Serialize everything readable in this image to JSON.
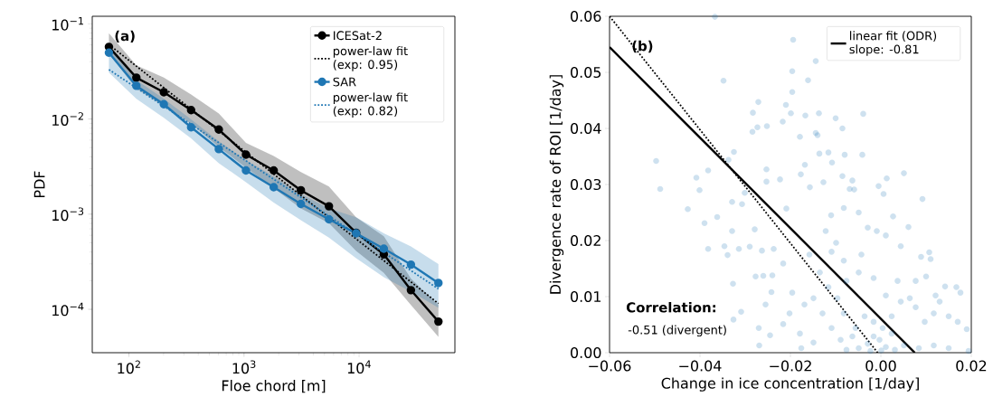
{
  "chart_data": [
    {
      "type": "line",
      "xlabel": "Floe chord [m]",
      "ylabel": "PDF",
      "log": "xy",
      "legend": "top right",
      "grid": false,
      "annotations": [
        "(a)"
      ],
      "xlim": [
        48,
        68000
      ],
      "ylim": [
        3.5e-05,
        0.12
      ],
      "xticks": [
        {
          "value": 100,
          "label": "10$^{2}$"
        },
        {
          "value": 1000,
          "label": "10$^{3}$"
        },
        {
          "value": 10000,
          "label": "10$^{4}$"
        }
      ],
      "yticks": [
        {
          "value": 0.0001,
          "label": "10$^{−4}$"
        },
        {
          "value": 0.001,
          "label": "10$^{−3}$"
        },
        {
          "value": 0.01,
          "label": "10$^{−2}$"
        },
        {
          "value": 0.1,
          "label": "10$^{−1}$"
        }
      ],
      "x": [
        67,
        116,
        201,
        347,
        604,
        1040,
        1812,
        3120,
        5470,
        9420,
        16400,
        28200,
        48900
      ],
      "series": [
        {
          "name": "ICESat-2",
          "color": "#000000",
          "marker": "circle",
          "line_style": "solid",
          "values": [
            0.0572,
            0.0272,
            0.0191,
            0.0124,
            0.00774,
            0.00422,
            0.00288,
            0.00178,
            0.00121,
            0.000638,
            0.000378,
            0.000159,
            7.43e-05
          ],
          "upper": [
            0.0798,
            0.0366,
            0.0272,
            0.0181,
            0.0114,
            0.00562,
            0.00409,
            0.00277,
            0.00195,
            0.000927,
            0.000586,
            0.00021,
            0.000111
          ],
          "lower": [
            0.0487,
            0.0208,
            0.0136,
            0.00891,
            0.00506,
            0.00308,
            0.00188,
            0.00115,
            0.000805,
            0.000411,
            0.000242,
            0.000111,
            5.12e-05
          ]
        },
        {
          "name": "power-law fit (exp: 0.95)",
          "color": "#000000",
          "marker": "none",
          "line_style": "dotted",
          "x": [
            67,
            48900
          ],
          "values": [
            0.0605,
            0.000115
          ]
        },
        {
          "name": "SAR",
          "color": "#1f77b4",
          "marker": "circle",
          "line_style": "solid",
          "values": [
            0.0497,
            0.0223,
            0.0143,
            0.00818,
            0.00482,
            0.00288,
            0.00192,
            0.00128,
            0.000883,
            0.000629,
            0.000433,
            0.000295,
            0.000189
          ],
          "upper": [
            0.056,
            0.0257,
            0.0163,
            0.00991,
            0.00583,
            0.00368,
            0.0025,
            0.00163,
            0.00115,
            0.000927,
            0.000629,
            0.000457,
            0.000299
          ],
          "lower": [
            0.0307,
            0.0163,
            0.0103,
            0.00625,
            0.00343,
            0.00217,
            0.00132,
            0.000865,
            0.000566,
            0.000345,
            0.000218,
            0.000153,
            0.000104
          ]
        },
        {
          "name": "power-law fit (exp: 0.82)",
          "color": "#1f77b4",
          "marker": "none",
          "line_style": "dotted",
          "x": [
            67,
            48900
          ],
          "values": [
            0.033,
            0.000164
          ]
        }
      ]
    },
    {
      "type": "scatter",
      "xlabel": "Change in ice concentration [1/day]",
      "ylabel": "Divergence rate of ROI [1/day]",
      "legend": "top right",
      "grid": false,
      "annotations": [
        "(b)",
        "Correlation:",
        "-0.51 (divergent)"
      ],
      "xlim": [
        -0.06,
        0.02
      ],
      "ylim": [
        0,
        0.06
      ],
      "xticks": [
        {
          "value": -0.06,
          "label": "−0.06"
        },
        {
          "value": -0.04,
          "label": "−0.04"
        },
        {
          "value": -0.02,
          "label": "−0.02"
        },
        {
          "value": 0,
          "label": "0.00"
        },
        {
          "value": 0.02,
          "label": "0.02"
        }
      ],
      "yticks": [
        {
          "value": 0,
          "label": "0.00"
        },
        {
          "value": 0.01,
          "label": "0.01"
        },
        {
          "value": 0.02,
          "label": "0.02"
        },
        {
          "value": 0.03,
          "label": "0.03"
        },
        {
          "value": 0.04,
          "label": "0.04"
        },
        {
          "value": 0.05,
          "label": "0.05"
        },
        {
          "value": 0.06,
          "label": "0.06"
        }
      ],
      "series": [
        {
          "color": "#1f77b4",
          "marker": "circle",
          "x": [
            -0.0367,
            -0.0194,
            -0.0144,
            -0.0196,
            -0.0348,
            -0.0161,
            -0.0196,
            -0.0271,
            -0.021,
            -0.0283,
            -0.0199,
            -0.0137,
            -0.0039,
            -0.0167,
            -0.01,
            -0.0217,
            -0.0273,
            -0.0252,
            -0.0085,
            -0.0284,
            -0.0144,
            -0.0179,
            -0.014,
            -0.0325,
            -0.0136,
            -0.0116,
            -0.008,
            -0.0041,
            -0.0497,
            -0.0337,
            -0.0108,
            -0.0168,
            -0.0253,
            -0.0382,
            -0.0177,
            -0.0085,
            0.0051,
            -0.0408,
            0.0013,
            -0.0223,
            -0.0253,
            -0.0127,
            -0.0063,
            -0.0488,
            -0.0005,
            -0.0157,
            -0.0059,
            -0.0401,
            0.0006,
            -0.0301,
            0.0092,
            -0.0427,
            -0.039,
            -0.0362,
            -0.0382,
            -0.0346,
            -0.0339,
            -0.0329,
            -0.0307,
            -0.0329,
            -0.0314,
            -0.029,
            -0.0279,
            -0.0263,
            -0.0277,
            -0.026,
            -0.0327,
            -0.0309,
            -0.0326,
            -0.0237,
            -0.024,
            -0.0216,
            -0.0209,
            -0.0242,
            -0.0255,
            -0.027,
            -0.0245,
            -0.0269,
            -0.0196,
            -0.0202,
            -0.0216,
            -0.0179,
            -0.0169,
            -0.0158,
            -0.0122,
            -0.011,
            -0.0099,
            -0.0082,
            -0.0069,
            -0.0049,
            -0.0029,
            -0.0009,
            0.0011,
            0.0027,
            0.0044,
            0.0061,
            0.0089,
            0.011,
            0.0107,
            0.0077,
            0.01,
            0.0142,
            0.0167,
            0.0176,
            0.0121,
            0.013,
            0.015,
            0.017,
            0.019,
            0.0117,
            0.0097,
            0.0077,
            0.0064,
            0.0044,
            0.0024,
            0.0004,
            -0.0016,
            -0.0029,
            -0.0049,
            -0.0076,
            0.0011,
            0.0031,
            0.0051,
            0.0084,
            0.0117,
            0.015,
            0.0194,
            -0.0003,
            -0.0016,
            -0.0036,
            -0.0056,
            -0.0082,
            -0.0096,
            -0.0116,
            -0.0076,
            -0.0049,
            -0.0016,
            0.0011,
            0.0037,
            -0.0043,
            -0.0082,
            -0.0109,
            -0.0135,
            -0.0149,
            -0.0129,
            -0.0109,
            -0.0089,
            -0.0149,
            -0.0176,
            -0.0063,
            0.0024,
            -0.0023,
            0.0001
          ],
          "values": [
            0.0599,
            0.0558,
            0.052,
            0.0502,
            0.0485,
            0.0486,
            0.0465,
            0.0447,
            0.0442,
            0.0428,
            0.0427,
            0.0427,
            0.0426,
            0.0423,
            0.0418,
            0.0412,
            0.0402,
            0.0404,
            0.04,
            0.0394,
            0.0392,
            0.0385,
            0.0388,
            0.0358,
            0.0355,
            0.0357,
            0.0353,
            0.0353,
            0.0342,
            0.0344,
            0.0339,
            0.0335,
            0.0327,
            0.0325,
            0.0318,
            0.0315,
            0.032,
            0.0312,
            0.0311,
            0.0309,
            0.0305,
            0.0304,
            0.0307,
            0.0292,
            0.0297,
            0.0295,
            0.0291,
            0.029,
            0.0283,
            0.0285,
            0.0274,
            0.0256,
            0.0231,
            0.0242,
            0.0185,
            0.019,
            0.0174,
            0.0217,
            0.0265,
            0.0269,
            0.0185,
            0.0189,
            0.022,
            0.0182,
            0.0136,
            0.0137,
            0.0123,
            0.0073,
            0.0059,
            0.0185,
            0.0138,
            0.0159,
            0.0257,
            0.0108,
            0.0086,
            0.0044,
            0.0031,
            0.0013,
            0.0107,
            0.007,
            0.0051,
            0.0034,
            0.0086,
            0.0175,
            0.0217,
            0.0245,
            0.0196,
            0.0258,
            0.0292,
            0.025,
            0.0223,
            0.0217,
            0.0209,
            0.0243,
            0.019,
            0.0224,
            0.0171,
            0.0167,
            0.0179,
            0.0128,
            0.0136,
            0.0118,
            0.0117,
            0.0107,
            0.0102,
            0.0091,
            0.0065,
            0.0055,
            0.0042,
            0.007,
            0.0055,
            0.0081,
            0.0097,
            0.0091,
            0.0065,
            0.0044,
            0.0029,
            0.0016,
            0.0008,
            0.0005,
            0.001,
            0.0005,
            0.0013,
            0.0008,
            0.0013,
            0.0008,
            0.0003,
            0.0023,
            0.0055,
            0.0065,
            0.0044,
            0.007,
            0.0097,
            0.0117,
            0.0128,
            0.0143,
            0.0133,
            0.0102,
            0.0128,
            0.0175,
            0.0164,
            0.018,
            0.0143,
            0.0097,
            0.007,
            0.0044,
            0.0023,
            0.0018,
            0.0008,
            0.0029,
            0.0034,
            0.0003,
            0.0004
          ]
        },
        {
          "name": "linear fit (ODR) slope: -0.81",
          "type": "line",
          "color": "#000000",
          "marker": "none",
          "line_style": "solid",
          "x": [
            -0.06,
            0.0075
          ],
          "values": [
            0.0545,
            0
          ]
        },
        {
          "type": "line",
          "color": "#000000",
          "marker": "none",
          "line_style": "dotted",
          "x": [
            -0.06,
            -0.0007
          ],
          "values": [
            0.06,
            0
          ]
        }
      ]
    }
  ]
}
